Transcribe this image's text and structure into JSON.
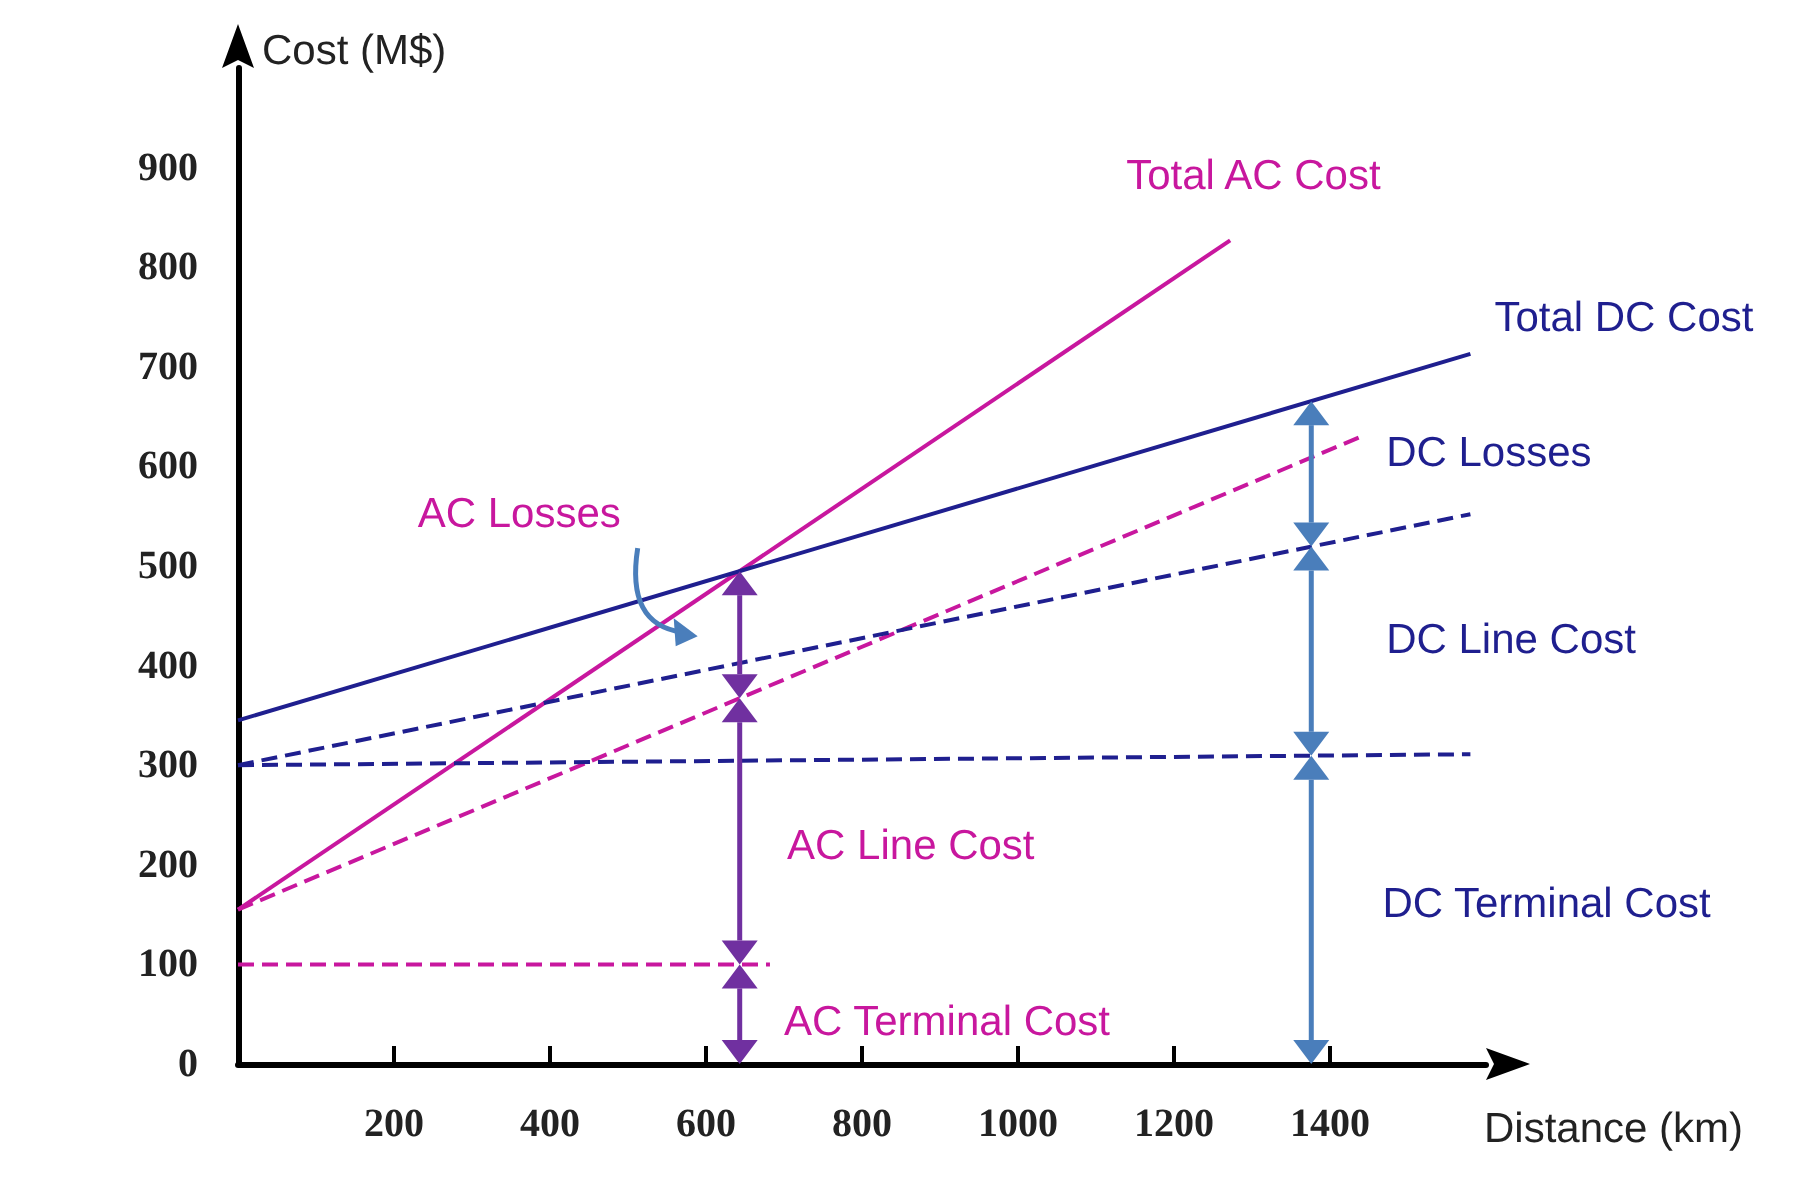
{
  "chart_data": {
    "type": "line",
    "xlabel": "Distance (km)",
    "ylabel": "Cost (M$)",
    "xlim": [
      0,
      1600
    ],
    "ylim": [
      0,
      1000
    ],
    "xticks": [
      200,
      400,
      600,
      800,
      1000,
      1200,
      1400
    ],
    "yticks": [
      0,
      100,
      200,
      300,
      400,
      500,
      600,
      700,
      800,
      900
    ],
    "grid": false,
    "legend": false,
    "marker": "none",
    "series": [
      {
        "name": "Total AC Cost",
        "color": "#c8179e",
        "x": [
          0,
          1272
        ],
        "values": [
          155,
          827
        ],
        "line_style": "solid"
      },
      {
        "name": "Total DC Cost",
        "color": "#1f1f8f",
        "x": [
          0,
          1580
        ],
        "values": [
          345,
          713
        ],
        "line_style": "solid"
      },
      {
        "color": "#c8179e",
        "x": [
          0,
          1446
        ],
        "values": [
          155,
          632
        ],
        "line_style": "dashed"
      },
      {
        "color": "#1f1f8f",
        "x": [
          0,
          1580
        ],
        "values": [
          300,
          552
        ],
        "line_style": "dashed"
      },
      {
        "color": "#1f1f8f",
        "x": [
          0,
          1580
        ],
        "values": [
          300,
          311
        ],
        "line_style": "dashed"
      },
      {
        "color": "#c8179e",
        "x": [
          0,
          682
        ],
        "values": [
          100,
          100
        ],
        "line_style": "dashed"
      }
    ],
    "annotations": [
      "AC Losses",
      "AC Line Cost",
      "AC Terminal Cost",
      "DC Losses",
      "DC Line Cost",
      "DC Terminal Cost"
    ]
  }
}
